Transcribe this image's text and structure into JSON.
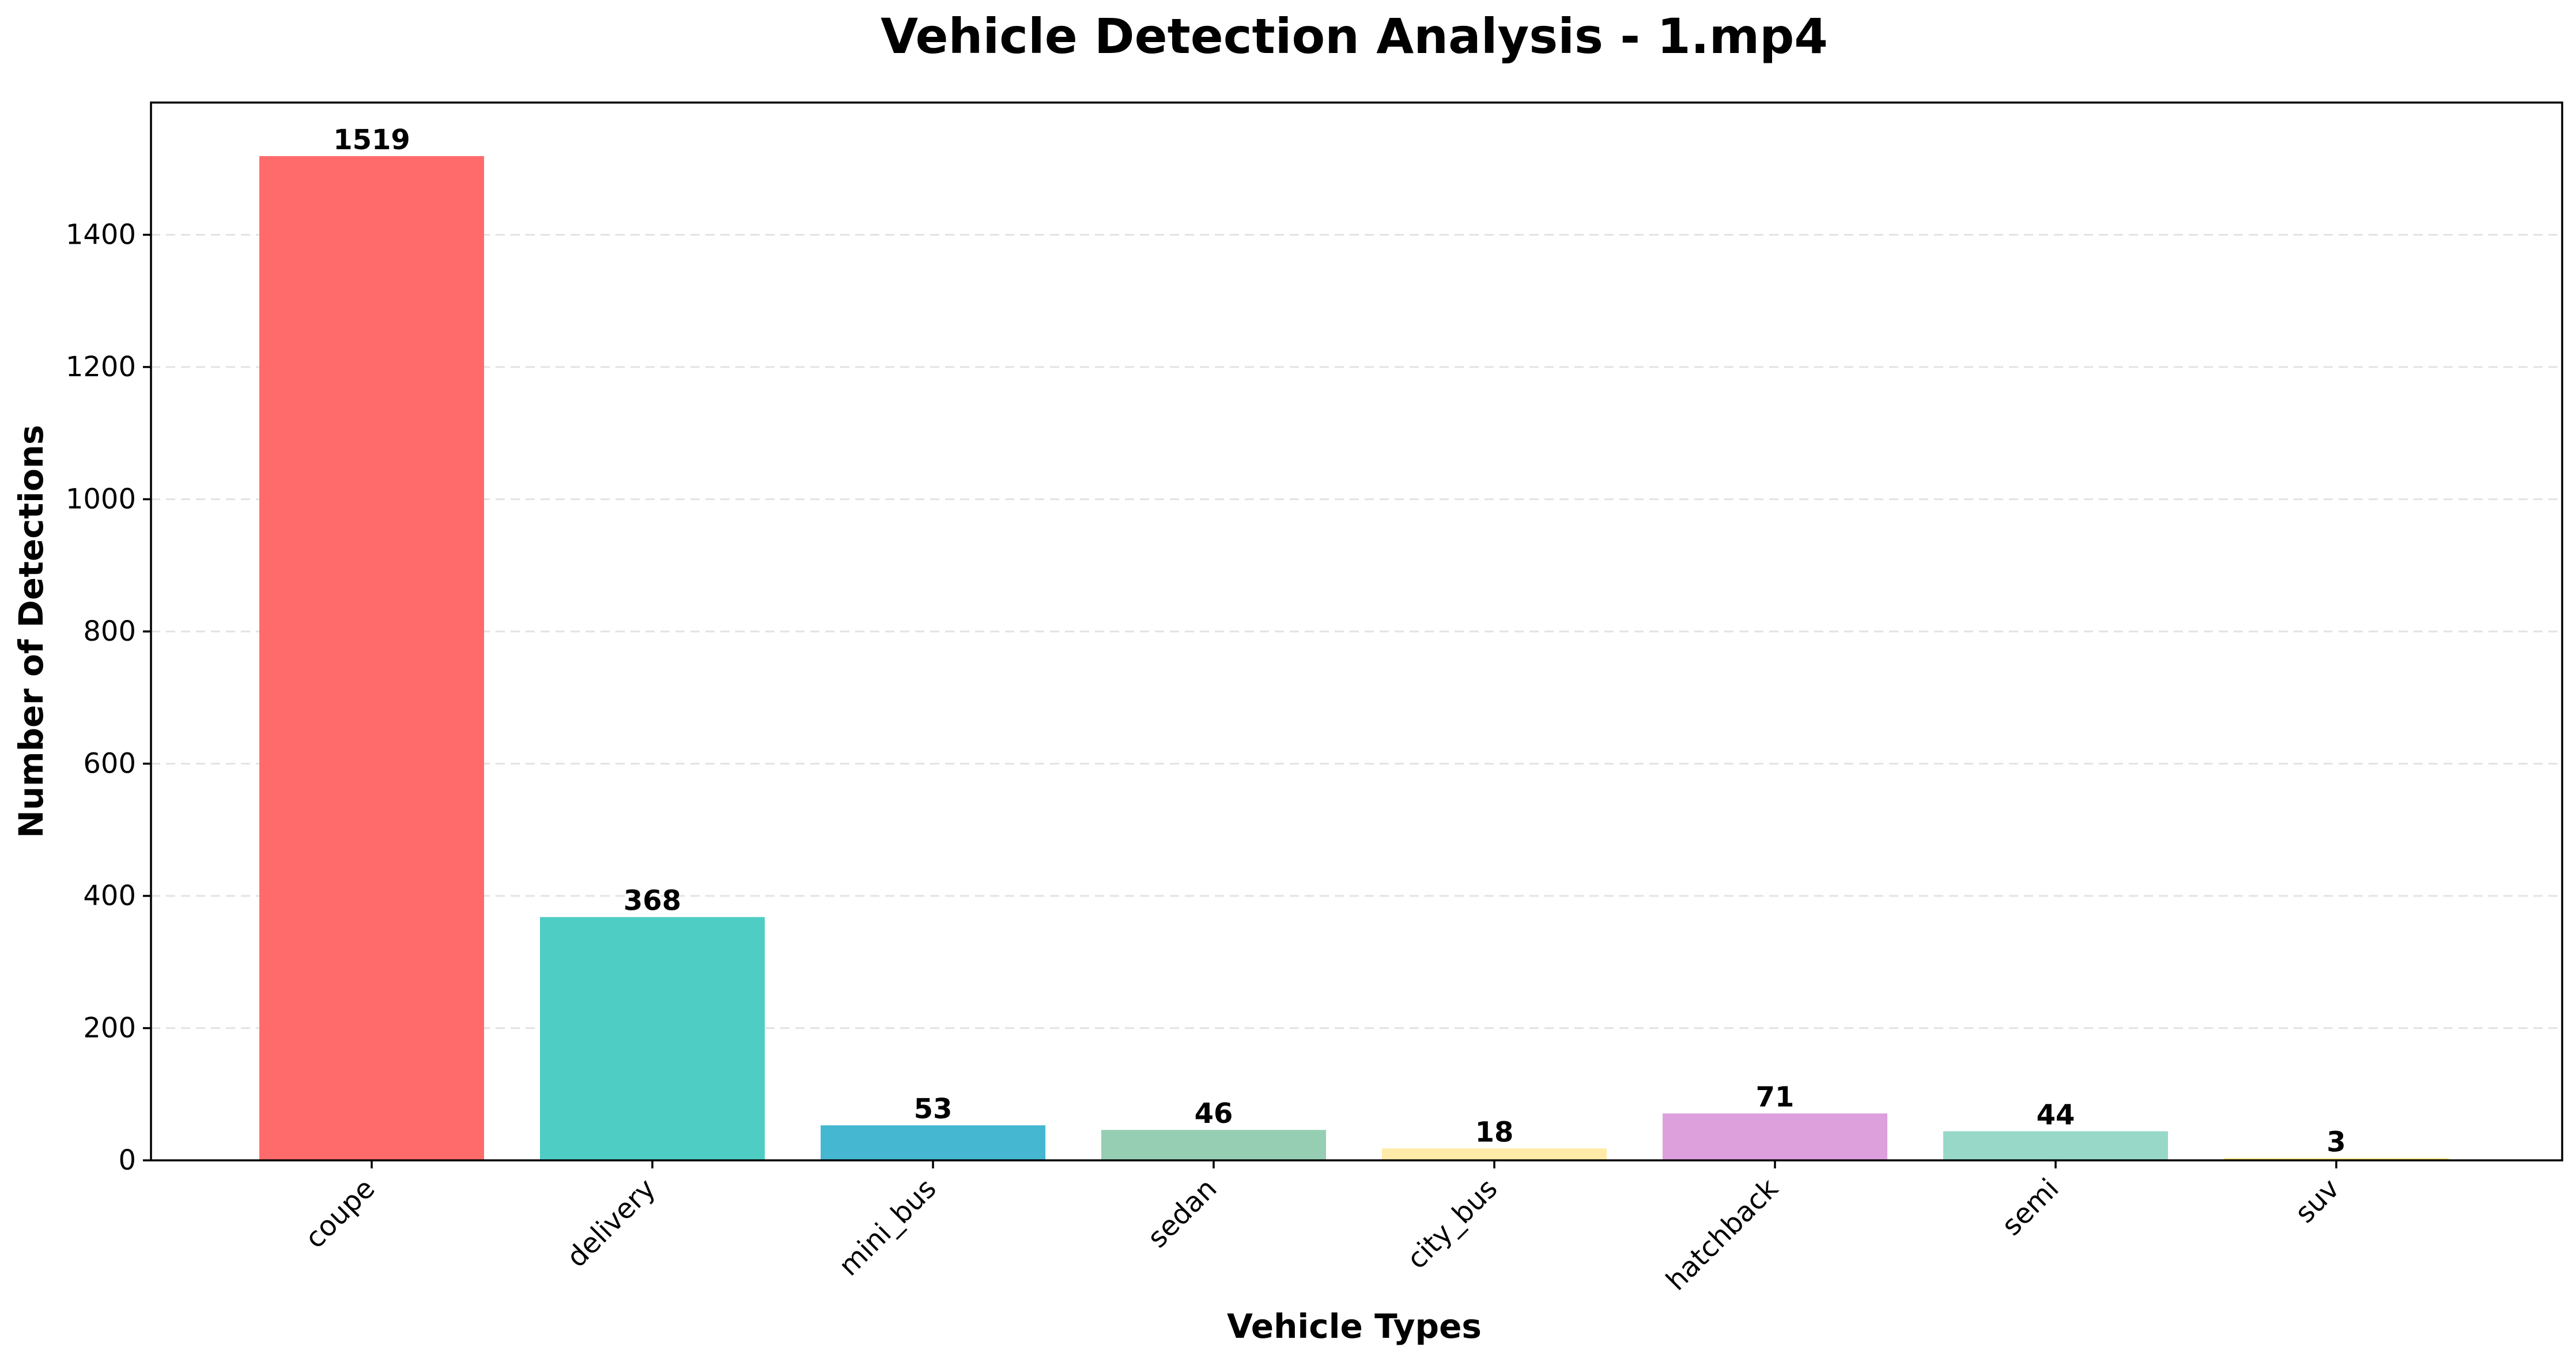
{
  "chart_data": {
    "type": "bar",
    "title": "Vehicle Detection Analysis - 1.mp4",
    "xlabel": "Vehicle Types",
    "ylabel": "Number of Detections",
    "categories": [
      "coupe",
      "delivery",
      "mini_bus",
      "sedan",
      "city_bus",
      "hatchback",
      "semi",
      "suv"
    ],
    "values": [
      1519,
      368,
      53,
      46,
      18,
      71,
      44,
      3
    ],
    "colors": [
      "#FF6B6B",
      "#4ECDC4",
      "#45B7D1",
      "#96CEB4",
      "#FFEAA7",
      "#DDA0DD",
      "#98D8C8",
      "#F7DC6F"
    ],
    "ylim": [
      0,
      1600
    ],
    "yticks": [
      0,
      200,
      400,
      600,
      800,
      1000,
      1200,
      1400
    ],
    "grid": "y-dashed",
    "legend": "none"
  }
}
